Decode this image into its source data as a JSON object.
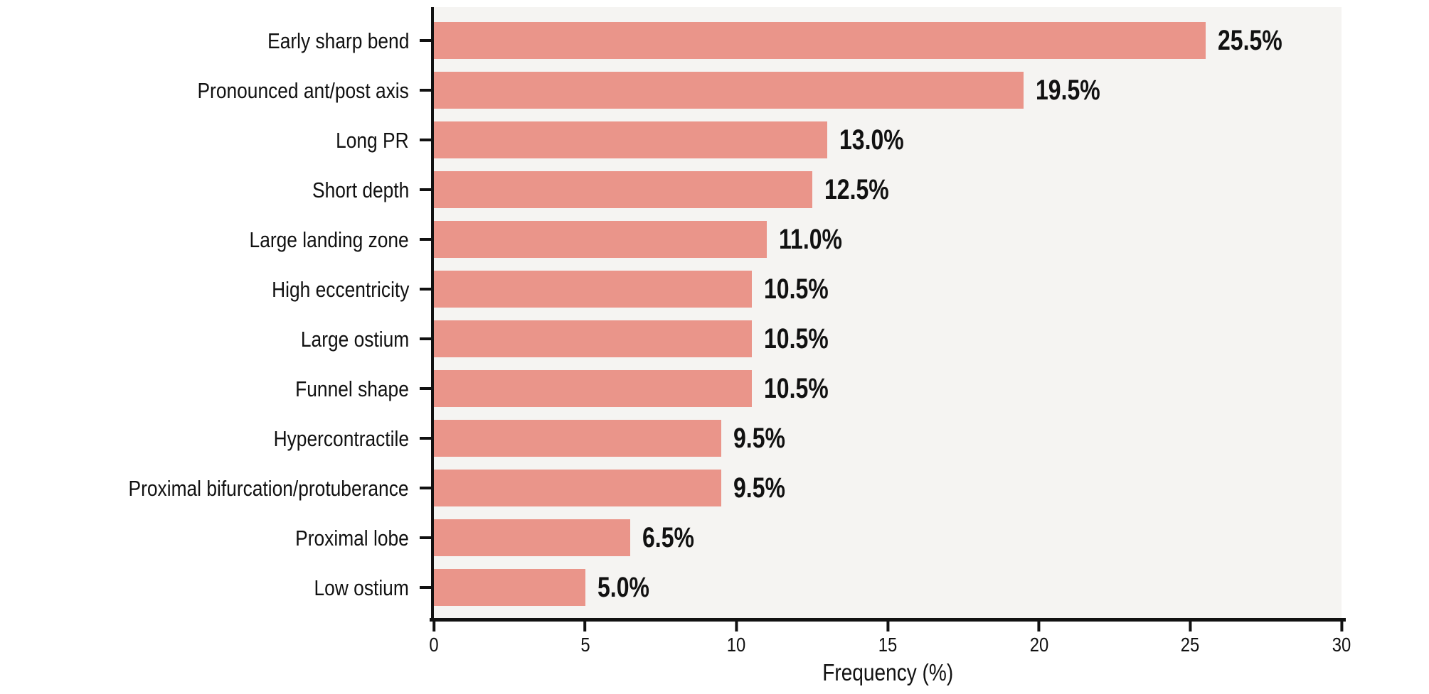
{
  "chart_data": {
    "type": "bar",
    "orientation": "horizontal",
    "title": "",
    "xlabel": "Frequency (%)",
    "ylabel": "",
    "xlim": [
      0,
      30
    ],
    "xticks": [
      0,
      5,
      10,
      15,
      20,
      25,
      30
    ],
    "xtick_labels": [
      "0",
      "5",
      "10",
      "15",
      "20",
      "25",
      "30"
    ],
    "grid": false,
    "legend": false,
    "categories": [
      "Early sharp bend",
      "Pronounced ant/post axis",
      "Long PR",
      "Short depth",
      "Large landing zone",
      "High eccentricity",
      "Large ostium",
      "Funnel shape",
      "Hypercontractile",
      "Proximal bifurcation/protuberance",
      "Proximal lobe",
      "Low ostium"
    ],
    "values": [
      25.5,
      19.5,
      13.0,
      12.5,
      11.0,
      10.5,
      10.5,
      10.5,
      9.5,
      9.5,
      6.5,
      5.0
    ],
    "value_labels": [
      "25.5%",
      "19.5%",
      "13.0%",
      "12.5%",
      "11.0%",
      "10.5%",
      "10.5%",
      "10.5%",
      "9.5%",
      "9.5%",
      "6.5%",
      "5.0%"
    ],
    "colors": {
      "bar": "#EA958A",
      "plot_background": "#F5F4F2",
      "page_background": "#FFFFFF",
      "axis": "#111111",
      "text": "#111111"
    }
  }
}
